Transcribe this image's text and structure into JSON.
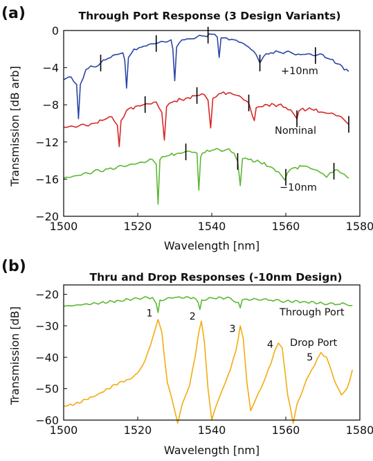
{
  "chart_data": [
    {
      "panel": "(a)",
      "type": "line",
      "title": "Through Port Response (3 Design Variants)",
      "xlabel": "Wavelength [nm]",
      "ylabel": "Transmission [dB arb]",
      "xlim": [
        1500,
        1580
      ],
      "ylim": [
        -20,
        0
      ],
      "xticks": [
        1500,
        1520,
        1540,
        1560,
        1580
      ],
      "yticks": [
        0,
        -4,
        -8,
        -12,
        -16,
        -20
      ],
      "grid": false,
      "series": [
        {
          "name": "+10nm",
          "color": "#2a45a5",
          "x": [
            1500,
            1502,
            1503.5,
            1504,
            1504.5,
            1506,
            1508,
            1510,
            1512,
            1514,
            1516,
            1516.5,
            1517,
            1517.5,
            1519,
            1521,
            1523,
            1525,
            1527,
            1529,
            1529.5,
            1530,
            1530.5,
            1532,
            1534,
            1536,
            1538,
            1540,
            1541.5,
            1542,
            1542.5,
            1544,
            1546,
            1548,
            1550,
            1552,
            1553,
            1554,
            1556,
            1558,
            1560,
            1562,
            1564,
            1566,
            1568,
            1570,
            1572,
            1574,
            1577
          ],
          "y": [
            -5.3,
            -5.0,
            -5.8,
            -9.5,
            -5.8,
            -4.2,
            -3.9,
            -3.5,
            -3.0,
            -2.6,
            -2.4,
            -3.2,
            -6.2,
            -2.9,
            -2.0,
            -1.8,
            -1.5,
            -1.4,
            -1.2,
            -1.0,
            -2.0,
            -5.4,
            -1.8,
            -1.0,
            -0.9,
            -0.7,
            -0.6,
            -0.4,
            -0.7,
            -2.9,
            -0.8,
            -0.8,
            -1.0,
            -1.3,
            -1.8,
            -2.6,
            -3.5,
            -2.8,
            -2.4,
            -2.3,
            -2.3,
            -2.5,
            -2.6,
            -2.5,
            -2.7,
            -2.6,
            -3.1,
            -3.6,
            -4.4
          ],
          "markers": [
            1510,
            1525,
            1539,
            1553,
            1568
          ]
        },
        {
          "name": "Nominal",
          "color": "#d62728",
          "x": [
            1500,
            1504,
            1508,
            1511,
            1513,
            1514.5,
            1515,
            1515.5,
            1517,
            1520,
            1523,
            1525,
            1526.5,
            1527.2,
            1527.8,
            1530,
            1533,
            1536,
            1538,
            1539,
            1539.7,
            1540.3,
            1542,
            1545,
            1548,
            1550,
            1551,
            1551.5,
            1552,
            1555,
            1558,
            1560,
            1562,
            1563,
            1563.5,
            1564,
            1567,
            1570,
            1573,
            1575,
            1577
          ],
          "y": [
            -10.4,
            -10.3,
            -10.0,
            -9.6,
            -9.3,
            -10.2,
            -12.5,
            -9.7,
            -8.6,
            -8.1,
            -7.9,
            -7.7,
            -8.8,
            -11.8,
            -8.2,
            -7.6,
            -7.3,
            -7.0,
            -6.9,
            -7.5,
            -10.5,
            -7.3,
            -6.8,
            -6.7,
            -7.2,
            -7.8,
            -9.2,
            -9.7,
            -8.3,
            -8.0,
            -8.0,
            -8.3,
            -8.9,
            -9.5,
            -8.7,
            -8.5,
            -8.5,
            -8.8,
            -9.0,
            -9.3,
            -10.1
          ],
          "markers": [
            1522,
            1536,
            1550,
            1563,
            1577
          ]
        },
        {
          "name": "−10nm",
          "color": "#5cb832",
          "x": [
            1500,
            1504,
            1508,
            1512,
            1516,
            1520,
            1524,
            1525,
            1525.5,
            1526,
            1528,
            1531,
            1534,
            1536,
            1536.5,
            1537,
            1537.5,
            1540,
            1544,
            1546,
            1547,
            1547.7,
            1548.3,
            1550,
            1553,
            1556,
            1558,
            1559,
            1559.7,
            1560.5,
            1562,
            1565,
            1568,
            1570,
            1571,
            1572,
            1574,
            1577
          ],
          "y": [
            -15.9,
            -15.6,
            -15.2,
            -14.9,
            -14.6,
            -14.3,
            -13.9,
            -14.4,
            -18.7,
            -13.9,
            -13.5,
            -13.2,
            -13.0,
            -13.2,
            -17.2,
            -13.6,
            -13.2,
            -12.9,
            -12.8,
            -13.2,
            -14.1,
            -16.7,
            -13.8,
            -13.9,
            -14.2,
            -14.7,
            -15.2,
            -15.7,
            -16.1,
            -15.3,
            -14.8,
            -14.6,
            -15.0,
            -15.4,
            -15.8,
            -15.3,
            -15.0,
            -15.9
          ],
          "markers": [
            1533,
            1547,
            1560,
            1573
          ]
        }
      ]
    },
    {
      "panel": "(b)",
      "type": "line",
      "title": "Thru and Drop Responses (-10nm Design)",
      "xlabel": "Wavelength [nm]",
      "ylabel": "Transmission [dB]",
      "xlim": [
        1500,
        1580
      ],
      "ylim": [
        -60,
        -17
      ],
      "xticks": [
        1500,
        1520,
        1540,
        1560,
        1580
      ],
      "yticks": [
        -20,
        -30,
        -40,
        -50,
        -60
      ],
      "grid": false,
      "series": [
        {
          "name": "Through Port",
          "color": "#5cb832",
          "x": [
            1500,
            1505,
            1510,
            1515,
            1520,
            1524,
            1525,
            1525.5,
            1526,
            1530,
            1535,
            1536.3,
            1536.8,
            1537.3,
            1540,
            1545,
            1547.2,
            1547.7,
            1548.2,
            1552,
            1556,
            1560,
            1565,
            1570,
            1574,
            1576,
            1578
          ],
          "y": [
            -23.8,
            -23.3,
            -22.7,
            -22.0,
            -21.3,
            -21.0,
            -23.0,
            -25.8,
            -21.8,
            -21.0,
            -21.0,
            -22.5,
            -24.8,
            -21.8,
            -21.1,
            -21.2,
            -22.6,
            -24.3,
            -21.8,
            -21.5,
            -21.9,
            -22.2,
            -22.3,
            -22.9,
            -23.2,
            -23.0,
            -23.5
          ],
          "markers": []
        },
        {
          "name": "Drop Port",
          "color": "#f2ab0f",
          "x": [
            1500,
            1503,
            1506,
            1509,
            1512,
            1515,
            1518,
            1520,
            1522,
            1523.5,
            1524.5,
            1525.5,
            1526.5,
            1528,
            1530,
            1530.8,
            1532,
            1534,
            1535.5,
            1536.5,
            1537.2,
            1538,
            1539,
            1540,
            1541,
            1543,
            1545,
            1546.5,
            1547.7,
            1548.5,
            1549.5,
            1550.5,
            1552,
            1554,
            1556,
            1557,
            1558,
            1559,
            1560.5,
            1562,
            1563,
            1565,
            1567,
            1568.5,
            1569.5,
            1571,
            1573,
            1575,
            1576.5,
            1578
          ],
          "y": [
            -55.5,
            -55.0,
            -53.5,
            -52.0,
            -50.0,
            -48.0,
            -47.0,
            -45.0,
            -41.0,
            -36.0,
            -32.0,
            -28.0,
            -32.0,
            -48.0,
            -57.0,
            -61.0,
            -55.0,
            -49.0,
            -40.0,
            -32.0,
            -28.5,
            -35.0,
            -50.0,
            -60.0,
            -56.0,
            -50.0,
            -44.0,
            -38.0,
            -30.0,
            -34.0,
            -48.0,
            -57.0,
            -53.0,
            -48.0,
            -42.0,
            -38.0,
            -35.5,
            -37.0,
            -52.0,
            -61.0,
            -55.0,
            -49.0,
            -44.0,
            -40.5,
            -38.5,
            -40.0,
            -47.0,
            -52.0,
            -50.0,
            -44.0
          ],
          "markers": []
        }
      ],
      "annotations": [
        {
          "text": "1",
          "x": 1523.2,
          "y": -27
        },
        {
          "text": "2",
          "x": 1534.8,
          "y": -28
        },
        {
          "text": "3",
          "x": 1545.6,
          "y": -32
        },
        {
          "text": "4",
          "x": 1555.8,
          "y": -37
        },
        {
          "text": "5",
          "x": 1566.5,
          "y": -41
        }
      ]
    }
  ]
}
